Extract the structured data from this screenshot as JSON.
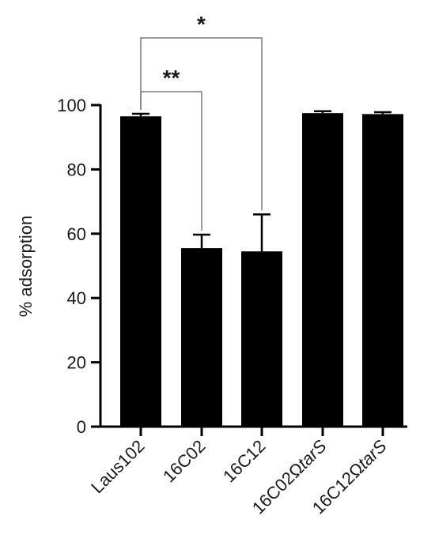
{
  "chart_data": {
    "type": "bar",
    "ylabel": "% adsorption",
    "ylim": [
      0,
      100
    ],
    "yticks": [
      0,
      20,
      40,
      60,
      80,
      100
    ],
    "bar_color": "#000000",
    "categories": [
      {
        "prefix": "Laus102",
        "suffix": ""
      },
      {
        "prefix": "16C02",
        "suffix": ""
      },
      {
        "prefix": "16C12",
        "suffix": ""
      },
      {
        "prefix": "16C02Ω",
        "suffix": "tarS"
      },
      {
        "prefix": "16C12Ω",
        "suffix": "tarS"
      }
    ],
    "values": [
      96.5,
      55.5,
      54.5,
      97.5,
      97.2
    ],
    "errors": [
      0.8,
      4.2,
      11.5,
      0.6,
      0.6
    ],
    "significance": [
      {
        "from": 0,
        "to": 1,
        "label": "**"
      },
      {
        "from": 0,
        "to": 2,
        "label": "*"
      }
    ]
  }
}
